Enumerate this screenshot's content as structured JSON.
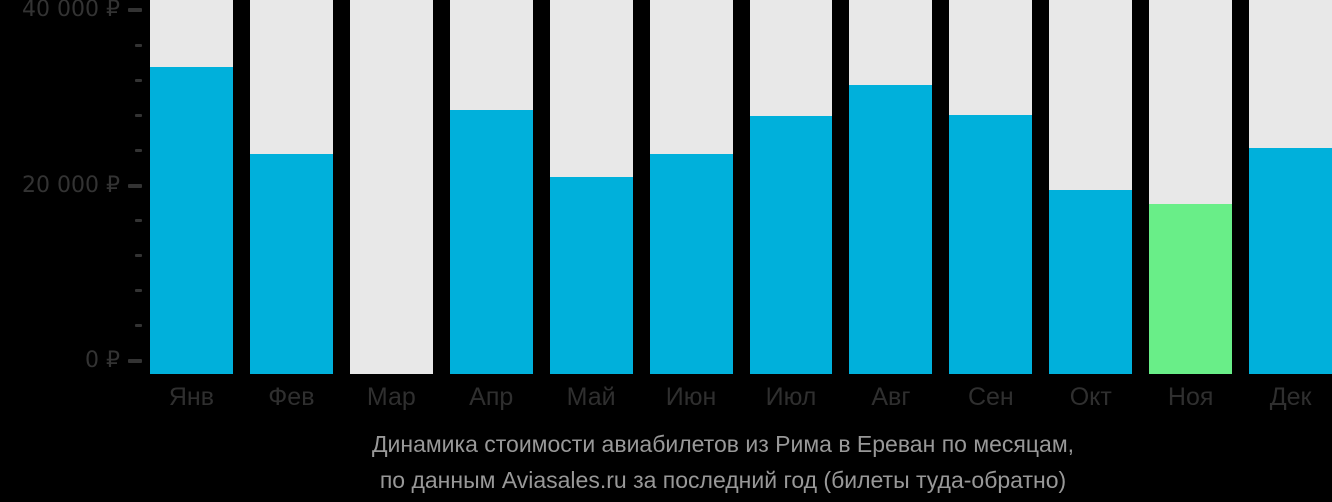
{
  "chart_data": {
    "type": "bar",
    "title": "Динамика стоимости авиабилетов из Рима в Ереван по месяцам,",
    "subtitle": "по данным Aviasales.ru за последний год (билеты туда-обратно)",
    "categories": [
      "Янв",
      "Фев",
      "Мар",
      "Апр",
      "Май",
      "Июн",
      "Июл",
      "Авг",
      "Сен",
      "Окт",
      "Ноя",
      "Дек"
    ],
    "values": [
      33600,
      23700,
      null,
      28700,
      21100,
      23700,
      28000,
      31600,
      28200,
      19600,
      18000,
      24400
    ],
    "highlight_index": 10,
    "currency": "₽",
    "ylim": [
      0,
      40000
    ],
    "y_major_step": 20000,
    "y_minor_step": 4000,
    "y_tick_labels": [
      "0 ₽",
      "20 000 ₽",
      "40 000 ₽"
    ],
    "legend": "none",
    "grid": "off",
    "colors": {
      "bar": "#00b0db",
      "bar_highlight": "#69ee88",
      "column_background": "#e8e8e8",
      "page_background": "#000000",
      "axis_text": "#333333",
      "month_text": "#2f2f2f",
      "caption_text": "#989898"
    }
  }
}
